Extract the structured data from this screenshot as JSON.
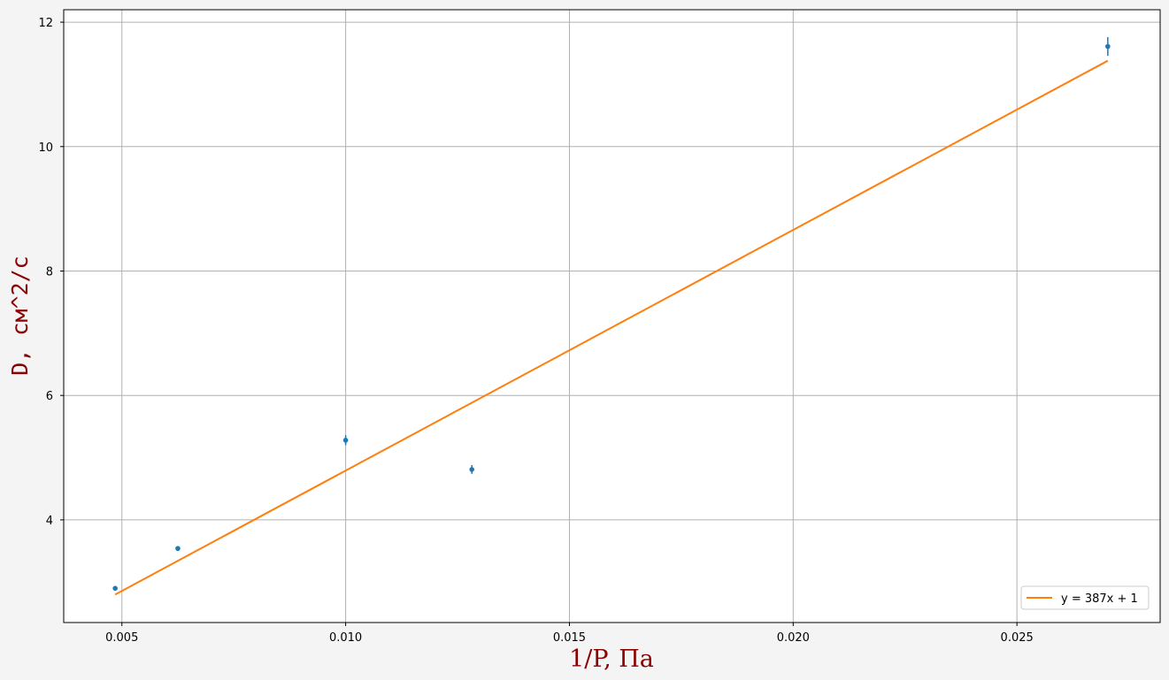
{
  "chart_data": {
    "type": "scatter",
    "xlabel": "1/P, Па",
    "ylabel": "D,  см^2/с",
    "xlim": [
      0.0037,
      0.0282
    ],
    "ylim": [
      2.35,
      12.2
    ],
    "x_ticks": [
      0.005,
      0.01,
      0.015,
      0.02,
      0.025
    ],
    "x_tick_labels": [
      "0.005",
      "0.010",
      "0.015",
      "0.020",
      "0.025"
    ],
    "y_ticks": [
      4,
      6,
      8,
      10,
      12
    ],
    "y_tick_labels": [
      "4",
      "6",
      "8",
      "10",
      "12"
    ],
    "grid": true,
    "legend_position": "lower-right",
    "series": [
      {
        "kind": "errorbar",
        "color": "#1f77b4",
        "points": [
          {
            "x": 0.00485,
            "y": 2.9,
            "yerr": 0.03
          },
          {
            "x": 0.00625,
            "y": 3.54,
            "yerr": 0.04
          },
          {
            "x": 0.01,
            "y": 5.28,
            "yerr": 0.08
          },
          {
            "x": 0.01282,
            "y": 4.81,
            "yerr": 0.07
          },
          {
            "x": 0.02703,
            "y": 11.61,
            "yerr": 0.15
          }
        ]
      },
      {
        "kind": "line",
        "name": "y = 387x + 1",
        "color": "#ff7f0e",
        "x": [
          0.00485,
          0.02703
        ],
        "y": [
          2.8,
          11.38
        ]
      }
    ]
  },
  "colors": {
    "axis_label": "#8b0000",
    "grid": "#b0b0b0",
    "background": "#ffffff",
    "figure_background": "#f4f4f4"
  }
}
